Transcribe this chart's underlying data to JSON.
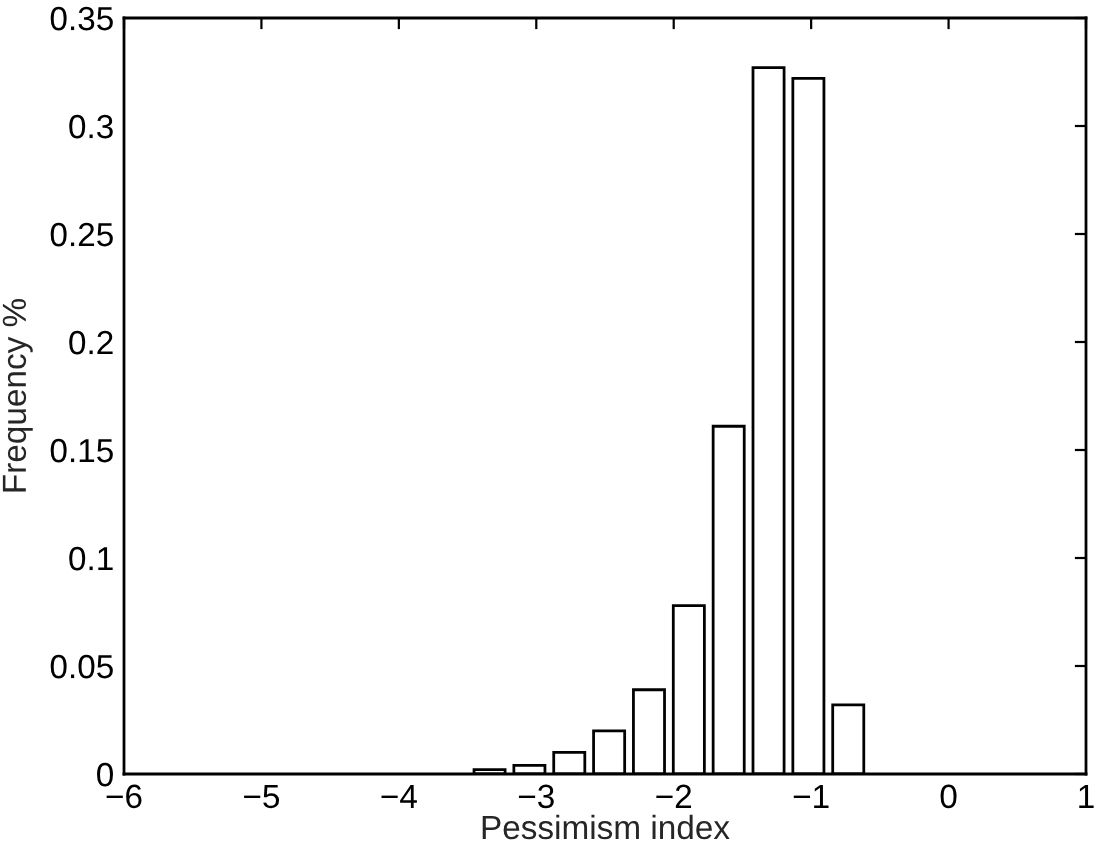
{
  "chart_data": {
    "type": "bar",
    "xlabel": "Pessimism index",
    "ylabel": "Frequency %",
    "x": [
      -3.34,
      -3.05,
      -2.76,
      -2.47,
      -2.18,
      -1.89,
      -1.6,
      -1.31,
      -1.02,
      -0.73
    ],
    "values": [
      0.002,
      0.004,
      0.01,
      0.02,
      0.039,
      0.078,
      0.161,
      0.327,
      0.322,
      0.032
    ],
    "color": "#ffffff",
    "xlim": [
      -6,
      1
    ],
    "xticks": [
      -6,
      -5,
      -4,
      -3,
      -2,
      -1,
      0,
      1
    ],
    "ylim": [
      0,
      0.35
    ],
    "yticks": [
      0,
      0.05,
      0.1,
      0.15,
      0.2,
      0.25,
      0.3,
      0.35
    ],
    "grid": false
  }
}
